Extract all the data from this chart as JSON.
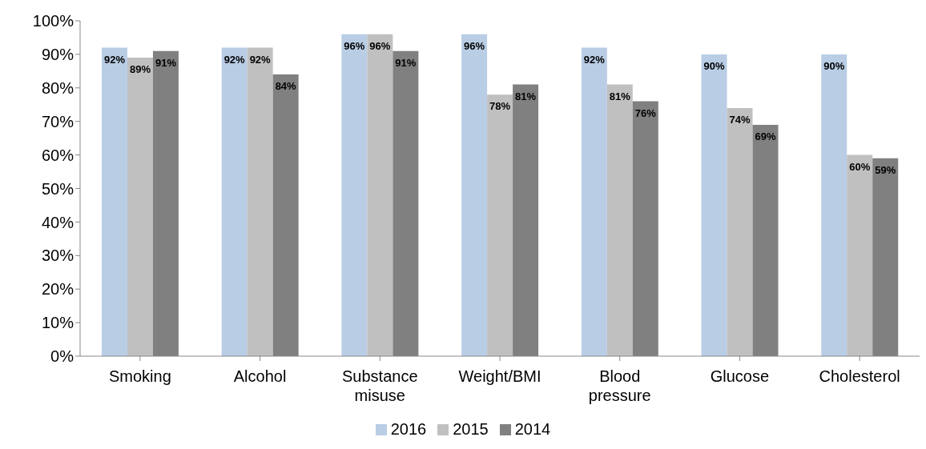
{
  "chart_data": {
    "type": "bar",
    "categories": [
      "Smoking",
      "Alcohol",
      "Substance misuse",
      "Weight/BMI",
      "Blood pressure",
      "Glucose",
      "Cholesterol"
    ],
    "series": [
      {
        "name": "2016",
        "color": "#b9cde5",
        "values": [
          92,
          92,
          96,
          96,
          92,
          90,
          90
        ],
        "value_labels": [
          "92%",
          "92%",
          "96%",
          "96%",
          "92%",
          "90%",
          "90%"
        ]
      },
      {
        "name": "2015",
        "color": "#c0c0c0",
        "values": [
          89,
          92,
          96,
          78,
          81,
          74,
          60
        ],
        "value_labels": [
          "89%",
          "92%",
          "96%",
          "78%",
          "81%",
          "74%",
          "60%"
        ]
      },
      {
        "name": "2014",
        "color": "#808080",
        "values": [
          91,
          84,
          91,
          81,
          76,
          69,
          59
        ],
        "value_labels": [
          "91%",
          "84%",
          "91%",
          "81%",
          "76%",
          "69%",
          "59%"
        ]
      }
    ],
    "ylim": [
      0,
      100
    ],
    "yticks": [
      {
        "value": 0,
        "label": "0%"
      },
      {
        "value": 10,
        "label": "10%"
      },
      {
        "value": 20,
        "label": "20%"
      },
      {
        "value": 30,
        "label": "30%"
      },
      {
        "value": 40,
        "label": "40%"
      },
      {
        "value": 50,
        "label": "50%"
      },
      {
        "value": 60,
        "label": "60%"
      },
      {
        "value": 70,
        "label": "70%"
      },
      {
        "value": 80,
        "label": "80%"
      },
      {
        "value": 90,
        "label": "90%"
      },
      {
        "value": 100,
        "label": "100%"
      }
    ],
    "grid": false,
    "legend": "bottom"
  }
}
